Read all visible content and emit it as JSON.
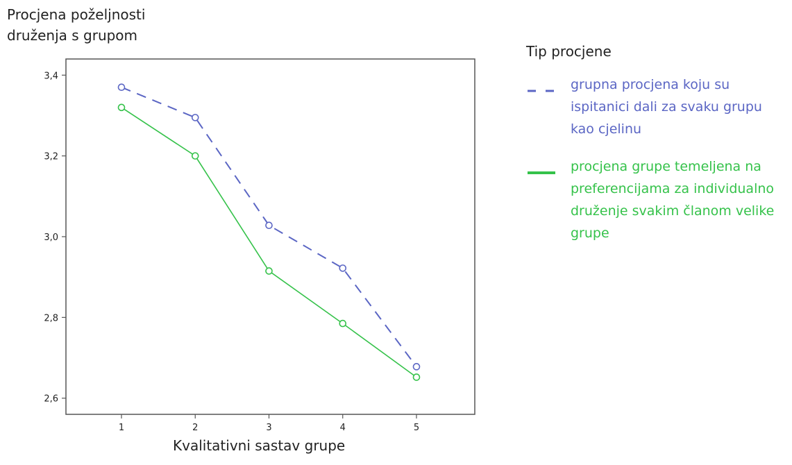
{
  "chart_data": {
    "type": "line",
    "title": "",
    "ylabel_lines": [
      "Procjena poželjnosti",
      "druženja s grupom"
    ],
    "xlabel": "Kvalitativni sastav grupe",
    "categories": [
      "1",
      "2",
      "3",
      "4",
      "5"
    ],
    "yticks": [
      "2,6",
      "2,8",
      "3,0",
      "3,2",
      "3,4"
    ],
    "ylim": [
      2.56,
      3.44
    ],
    "grid": false,
    "legend_title": "Tip procjene",
    "legend_position": "right",
    "series": [
      {
        "name": "grupna procjena koju su ispitanici dali za svaku grupu kao cjelinu",
        "values": [
          3.37,
          3.295,
          3.028,
          2.922,
          2.678
        ],
        "color": "#5b66c4",
        "style": "dashed",
        "marker": "circle"
      },
      {
        "name": "procjena grupe temeljena na preferencijama za individualno druženje svakim članom velike grupe",
        "values": [
          3.32,
          3.2,
          2.915,
          2.785,
          2.652
        ],
        "color": "#35c24a",
        "style": "solid",
        "marker": "circle"
      }
    ]
  }
}
